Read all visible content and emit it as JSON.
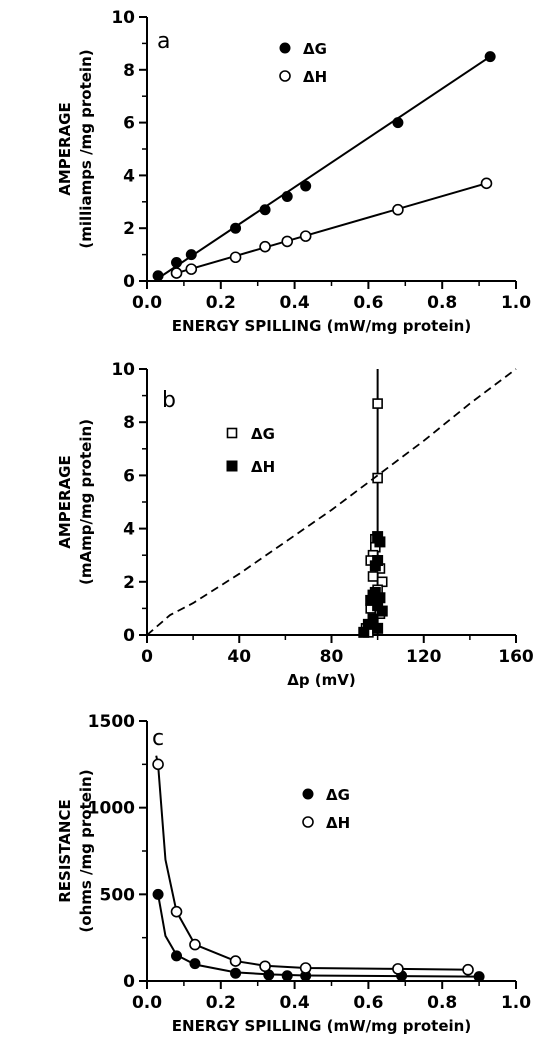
{
  "chart_data": [
    {
      "type": "scatter",
      "panel_label": "a",
      "xlabel": "ENERGY SPILLING (mW/mg protein)",
      "ylabel": "AMPERAGE",
      "ylabel_sub": "(milliamps /mg protein)",
      "xlim": [
        0,
        1.0
      ],
      "ylim": [
        0,
        10
      ],
      "x_ticks": [
        0.0,
        0.2,
        0.4,
        0.6,
        0.8,
        1.0
      ],
      "x_tick_labels": [
        "0.0",
        "0.2",
        "0.4",
        "0.6",
        "0.8",
        "1.0"
      ],
      "y_ticks": [
        0,
        2,
        4,
        6,
        8,
        10
      ],
      "y_tick_labels": [
        "0",
        "2",
        "4",
        "6",
        "8",
        "10"
      ],
      "grid": false,
      "legend_position": "top-center",
      "series": [
        {
          "name": "ΔG",
          "marker": "filled-circle",
          "x": [
            0.03,
            0.08,
            0.12,
            0.24,
            0.32,
            0.38,
            0.43,
            0.68,
            0.93
          ],
          "y": [
            0.2,
            0.7,
            1.0,
            2.0,
            2.7,
            3.2,
            3.6,
            6.0,
            8.5
          ],
          "fit": {
            "x": [
              0.03,
              0.93
            ],
            "y": [
              0.1,
              8.5
            ]
          }
        },
        {
          "name": "ΔH",
          "marker": "open-circle",
          "x": [
            0.08,
            0.12,
            0.24,
            0.32,
            0.38,
            0.43,
            0.68,
            0.92
          ],
          "y": [
            0.3,
            0.45,
            0.9,
            1.3,
            1.5,
            1.7,
            2.7,
            3.7
          ],
          "fit": {
            "x": [
              0.08,
              0.92
            ],
            "y": [
              0.3,
              3.7
            ]
          }
        }
      ]
    },
    {
      "type": "scatter",
      "panel_label": "b",
      "xlabel": "Δp (mV)",
      "ylabel": "AMPERAGE",
      "ylabel_sub": "(mAmp/mg protein)",
      "xlim": [
        0,
        160
      ],
      "ylim": [
        0,
        10
      ],
      "x_ticks": [
        0,
        40,
        80,
        120,
        160
      ],
      "x_tick_labels": [
        "0",
        "40",
        "80",
        "120",
        "160"
      ],
      "y_ticks": [
        0,
        2,
        4,
        6,
        8,
        10
      ],
      "y_tick_labels": [
        "0",
        "2",
        "4",
        "6",
        "8",
        "10"
      ],
      "grid": false,
      "legend_position": "top-left",
      "series": [
        {
          "name": "ΔG",
          "marker": "open-square",
          "x": [
            100,
            100,
            99,
            99,
            98,
            97,
            101,
            98,
            99,
            102,
            100,
            97,
            101,
            95,
            96
          ],
          "y": [
            8.7,
            5.9,
            3.6,
            3.3,
            3.0,
            2.8,
            2.5,
            2.2,
            1.5,
            2.0,
            1.7,
            1.0,
            0.8,
            0.25,
            0.1
          ],
          "fit": {
            "x": [
              100,
              100
            ],
            "y": [
              0,
              10
            ]
          }
        },
        {
          "name": "ΔH",
          "marker": "filled-square",
          "x": [
            100,
            101,
            100,
            99,
            98,
            97,
            101,
            99,
            100,
            102,
            98,
            96,
            100,
            94
          ],
          "y": [
            3.7,
            3.5,
            2.8,
            2.6,
            1.5,
            1.3,
            1.4,
            1.6,
            1.1,
            0.9,
            0.6,
            0.4,
            0.25,
            0.1
          ]
        },
        {
          "name": "",
          "style": "dashed-line",
          "x": [
            0,
            10,
            20,
            40,
            60,
            80,
            100,
            120,
            140,
            160
          ],
          "y": [
            0,
            0.75,
            1.2,
            2.3,
            3.5,
            4.7,
            6.0,
            7.3,
            8.7,
            10
          ]
        }
      ]
    },
    {
      "type": "scatter",
      "panel_label": "c",
      "xlabel": "ENERGY SPILLING (mW/mg protein)",
      "ylabel": "RESISTANCE",
      "ylabel_sub": "(ohms /mg protein)",
      "xlim": [
        0,
        1.0
      ],
      "ylim": [
        0,
        1500
      ],
      "x_ticks": [
        0.0,
        0.2,
        0.4,
        0.6,
        0.8,
        1.0
      ],
      "x_tick_labels": [
        "0.0",
        "0.2",
        "0.4",
        "0.6",
        "0.8",
        "1.0"
      ],
      "y_ticks": [
        0,
        500,
        1000,
        1500
      ],
      "y_tick_labels": [
        "0",
        "500",
        "1000",
        "1500"
      ],
      "grid": false,
      "legend_position": "center",
      "series": [
        {
          "name": "ΔG",
          "marker": "filled-circle",
          "x": [
            0.03,
            0.08,
            0.13,
            0.24,
            0.33,
            0.38,
            0.43,
            0.69,
            0.9
          ],
          "y": [
            500,
            145,
            100,
            45,
            35,
            30,
            30,
            30,
            25
          ],
          "fit": {
            "x": [
              0.025,
              0.03,
              0.05,
              0.08,
              0.13,
              0.24,
              0.33,
              0.43,
              0.69,
              0.9
            ],
            "y": [
              520,
              500,
              260,
              150,
              95,
              50,
              38,
              32,
              28,
              25
            ]
          }
        },
        {
          "name": "ΔH",
          "marker": "open-circle",
          "x": [
            0.03,
            0.08,
            0.13,
            0.24,
            0.32,
            0.43,
            0.68,
            0.87
          ],
          "y": [
            1250,
            400,
            210,
            115,
            85,
            75,
            70,
            65
          ],
          "fit": {
            "x": [
              0.025,
              0.03,
              0.05,
              0.08,
              0.13,
              0.24,
              0.32,
              0.43,
              0.68,
              0.88
            ],
            "y": [
              1300,
              1250,
              700,
              400,
              210,
              115,
              88,
              75,
              70,
              65
            ]
          }
        }
      ]
    }
  ]
}
